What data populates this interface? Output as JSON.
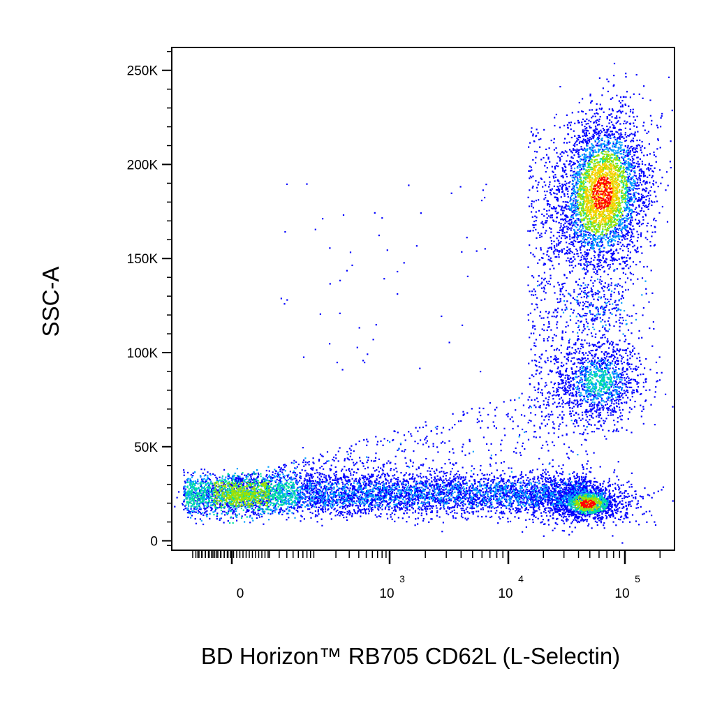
{
  "chart_data": {
    "type": "scatter",
    "subtype": "flow-cytometry-density-dot-plot",
    "xlabel": "BD Horizon™ RB705 CD62L (L-Selectin)",
    "ylabel": "SSC-A",
    "x_scale": "biexponential",
    "x_range": [
      -300,
      200000
    ],
    "y_range": [
      -5000,
      262144
    ],
    "x_ticks": [
      {
        "value": 0,
        "label": "0"
      },
      {
        "value": 1000,
        "label": "10",
        "exponent": "3"
      },
      {
        "value": 10000,
        "label": "10",
        "exponent": "4"
      },
      {
        "value": 100000,
        "label": "10",
        "exponent": "5"
      }
    ],
    "y_ticks": [
      {
        "value": 0,
        "label": "0"
      },
      {
        "value": 50000,
        "label": "50K"
      },
      {
        "value": 100000,
        "label": "100K"
      },
      {
        "value": 150000,
        "label": "150K"
      },
      {
        "value": 200000,
        "label": "200K"
      },
      {
        "value": 250000,
        "label": "250K"
      }
    ],
    "grid": false,
    "legend": "none",
    "density_colormap": [
      "#0000ff",
      "#00a0ff",
      "#00e0a0",
      "#a0e000",
      "#ffd000",
      "#ff0000"
    ],
    "populations": [
      {
        "name_visible": false,
        "x_center": 50000,
        "y_center": 20000,
        "x_spread": 12000,
        "y_spread": 6000,
        "density": "very high"
      },
      {
        "name_visible": false,
        "x_center": 65000,
        "y_center": 190000,
        "x_spread": 30000,
        "y_spread": 40000,
        "density": "high"
      },
      {
        "name_visible": false,
        "x_center": 60000,
        "y_center": 85000,
        "x_spread": 25000,
        "y_spread": 20000,
        "density": "medium"
      },
      {
        "name_visible": false,
        "x_center": 0,
        "y_center": 25000,
        "x_spread": 120,
        "y_spread": 8000,
        "density": "medium-high"
      },
      {
        "name_visible": false,
        "x_center": 3000,
        "y_center": 25000,
        "x_spread": 8000,
        "y_spread": 6000,
        "density": "medium"
      }
    ]
  }
}
